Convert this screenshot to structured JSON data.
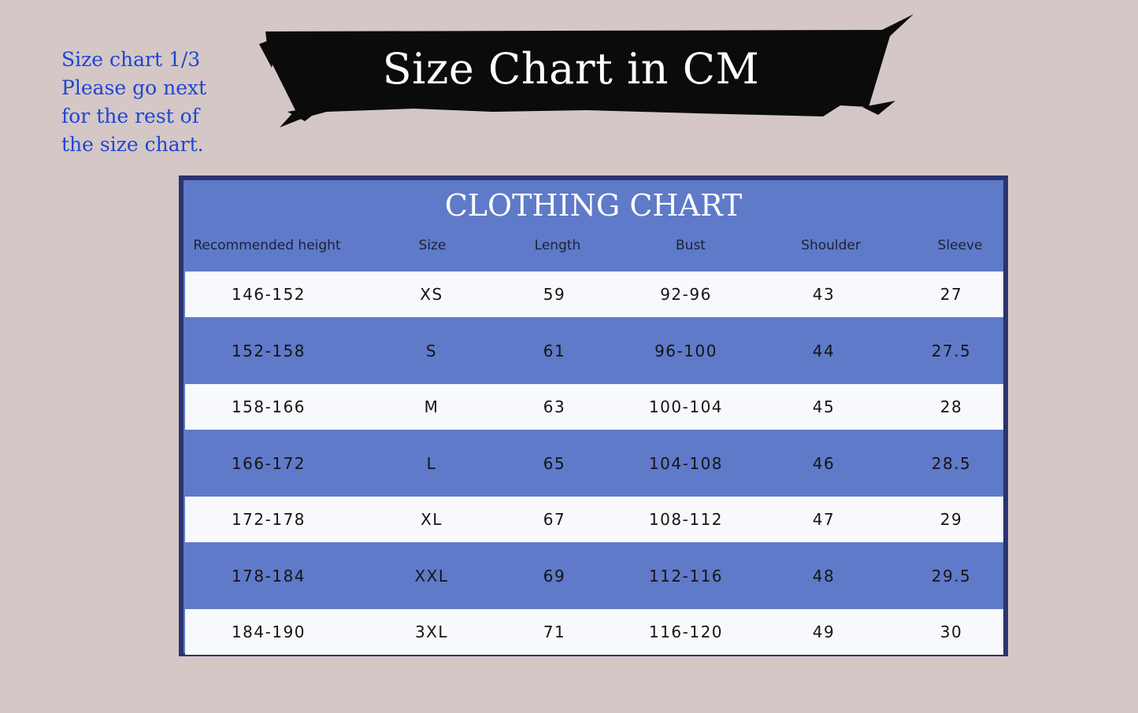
{
  "note": {
    "lines": [
      "Size chart 1/3",
      "Please go next",
      "for the rest of",
      "the size chart."
    ]
  },
  "banner": {
    "title": "Size Chart in CM"
  },
  "table": {
    "title": "CLOTHING CHART",
    "headers": [
      "Recommended height",
      "Size",
      "Length",
      "Bust",
      "Shoulder",
      "Sleeve"
    ],
    "rows": [
      [
        "146-152",
        "XS",
        "59",
        "92-96",
        "43",
        "27"
      ],
      [
        "152-158",
        "S",
        "61",
        "96-100",
        "44",
        "27.5"
      ],
      [
        "158-166",
        "M",
        "63",
        "100-104",
        "45",
        "28"
      ],
      [
        "166-172",
        "L",
        "65",
        "104-108",
        "46",
        "28.5"
      ],
      [
        "172-178",
        "XL",
        "67",
        "108-112",
        "47",
        "29"
      ],
      [
        "178-184",
        "XXL",
        "69",
        "112-116",
        "48",
        "29.5"
      ],
      [
        "184-190",
        "3XL",
        "71",
        "116-120",
        "49",
        "30"
      ]
    ]
  },
  "colors": {
    "background": "#d4c7c6",
    "note_text": "#1f44d6",
    "table_blue": "#5f7ac9",
    "table_white": "#f8f9fc",
    "frame": "#2b3370"
  }
}
